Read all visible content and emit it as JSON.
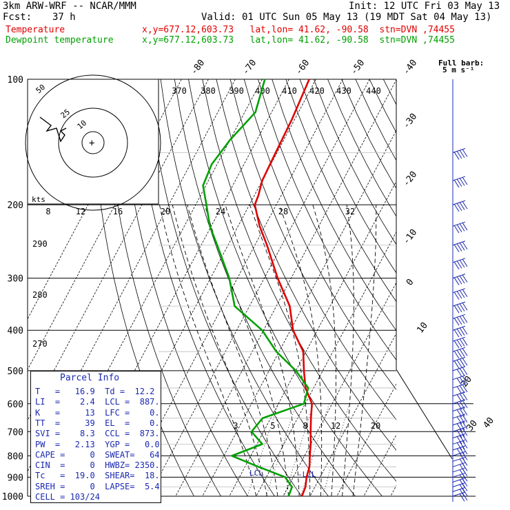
{
  "header": {
    "model": "3km ARW-WRF -- NCAR/MMM",
    "fcst_label": "Fcst:",
    "fcst_value": "37 h",
    "init": "Init: 12 UTC Fri 03 May 13",
    "valid": "Valid: 01 UTC Sun 05 May 13 (19 MDT Sat 04 May 13)",
    "temp_legend": "Temperature",
    "dew_legend": "Dewpoint temperature",
    "temp_loc": "x,y=677.12,603.73   lat,lon= 41.62, -90.58  stn=DVN ,74455",
    "dew_loc": "x,y=677.12,603.73   lat,lon= 41.62, -90.58  stn=DVN ,74455"
  },
  "colors": {
    "temperature": "#e00000",
    "dewpoint": "#00a000",
    "info_text": "#1a28b0",
    "wind_barbs": "#1a28b0"
  },
  "barb_label": {
    "line1": "Full barb:",
    "line2": "5 m s⁻¹"
  },
  "parcel_info": {
    "title": "Parcel Info",
    "rows": [
      "T   =   16.9  Td =  12.2",
      "LI  =    2.4  LCL =  887.",
      "K   =     13  LFC =    0.",
      "TT  =     39  EL  =    0.",
      "SVI =    8.3  CCL =  873.",
      "PW  =   2.13  YGP =   0.0",
      "CAPE =     0  SWEAT=   64",
      "CIN  =     0  HWBZ= 2350.",
      "Tc   =  19.0  SHEAR=  18.",
      "SREH =     0  LAPSE=  5.4",
      "CELL = 103/24"
    ]
  },
  "chart_data": {
    "type": "line",
    "y_axis": "pressure (hPa)",
    "pressure_ticks": [
      100,
      200,
      300,
      400,
      500,
      600,
      700,
      800,
      900,
      1000
    ],
    "isotherm_labels": [
      "-80",
      "-70",
      "-60",
      "-50",
      "-40",
      "-30",
      "-20",
      "-10",
      "0",
      "10",
      "20",
      "30",
      "40"
    ],
    "theta_labels": [
      "370",
      "380",
      "390",
      "400",
      "410",
      "420",
      "430",
      "440"
    ],
    "theta_low_labels": [
      "290",
      "280",
      "270"
    ],
    "mixing_ratio_labels": [
      "3",
      "5",
      "8",
      "12",
      "20"
    ],
    "hodograph_speed_labels": [
      "8",
      "12",
      "16",
      "20",
      "24",
      "28",
      "32"
    ],
    "hodograph_ring_labels": [
      "50",
      "25",
      "10"
    ],
    "hodograph_unit": "kts",
    "annotations": [
      "LCL",
      "-LCL"
    ],
    "series": [
      {
        "name": "Temperature",
        "points": [
          [
            100,
            -62.5
          ],
          [
            125,
            -61
          ],
          [
            150,
            -60.5
          ],
          [
            175,
            -60
          ],
          [
            190,
            -58.5
          ],
          [
            200,
            -58
          ],
          [
            225,
            -52
          ],
          [
            250,
            -45.5
          ],
          [
            300,
            -35
          ],
          [
            350,
            -25
          ],
          [
            400,
            -19
          ],
          [
            450,
            -11
          ],
          [
            500,
            -7
          ],
          [
            550,
            -3
          ],
          [
            600,
            2.5
          ],
          [
            650,
            5
          ],
          [
            700,
            7.5
          ],
          [
            750,
            10
          ],
          [
            800,
            12
          ],
          [
            850,
            14
          ],
          [
            900,
            15
          ],
          [
            950,
            16.5
          ],
          [
            1000,
            17
          ]
        ]
      },
      {
        "name": "Dewpoint temperature",
        "points": [
          [
            100,
            -79
          ],
          [
            120,
            -76
          ],
          [
            140,
            -80
          ],
          [
            160,
            -82
          ],
          [
            180,
            -81
          ],
          [
            200,
            -76
          ],
          [
            225,
            -70.5
          ],
          [
            250,
            -64
          ],
          [
            300,
            -53
          ],
          [
            350,
            -45.5
          ],
          [
            400,
            -30.5
          ],
          [
            450,
            -21
          ],
          [
            500,
            -10
          ],
          [
            550,
            -2
          ],
          [
            600,
            -0.5
          ],
          [
            650,
            -13
          ],
          [
            700,
            -14.5
          ],
          [
            750,
            -8
          ],
          [
            800,
            -17
          ],
          [
            850,
            -5
          ],
          [
            900,
            7
          ],
          [
            950,
            11.5
          ],
          [
            1000,
            12
          ]
        ]
      }
    ]
  }
}
